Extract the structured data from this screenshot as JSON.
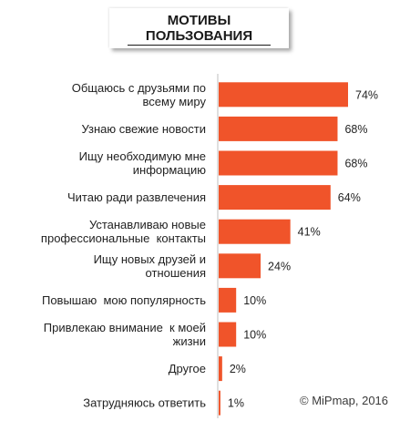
{
  "chart_data": {
    "type": "bar",
    "orientation": "horizontal",
    "title_line1": "МОТИВЫ",
    "title_line2": "ПОЛЬЗОВАНИЯ",
    "categories": [
      [
        "Общаюсь с друзьями по",
        "всему миру"
      ],
      [
        "Узнаю свежие новости"
      ],
      [
        "Ищу необходимую мне",
        "информацию"
      ],
      [
        "Читаю ради развлечения"
      ],
      [
        "Устанавливаю новые",
        "профессиональные  контакты"
      ],
      [
        "Ищу новых друзей и",
        "отношения"
      ],
      [
        "Повышаю  мою популярность"
      ],
      [
        "Привлекаю внимание  к моей",
        "жизни"
      ],
      [
        "Другое"
      ],
      [
        "Затрудняюсь ответить"
      ]
    ],
    "values": [
      74,
      68,
      68,
      64,
      41,
      24,
      10,
      10,
      2,
      1
    ],
    "value_labels": [
      "74%",
      "68%",
      "68%",
      "64%",
      "41%",
      "24%",
      "10%",
      "10%",
      "2%",
      "1%"
    ],
    "xlim": [
      0,
      74
    ],
    "bar_color": "#F0542A",
    "axis_line": true,
    "grid": false
  },
  "copyright": "© MiPmap, 2016"
}
